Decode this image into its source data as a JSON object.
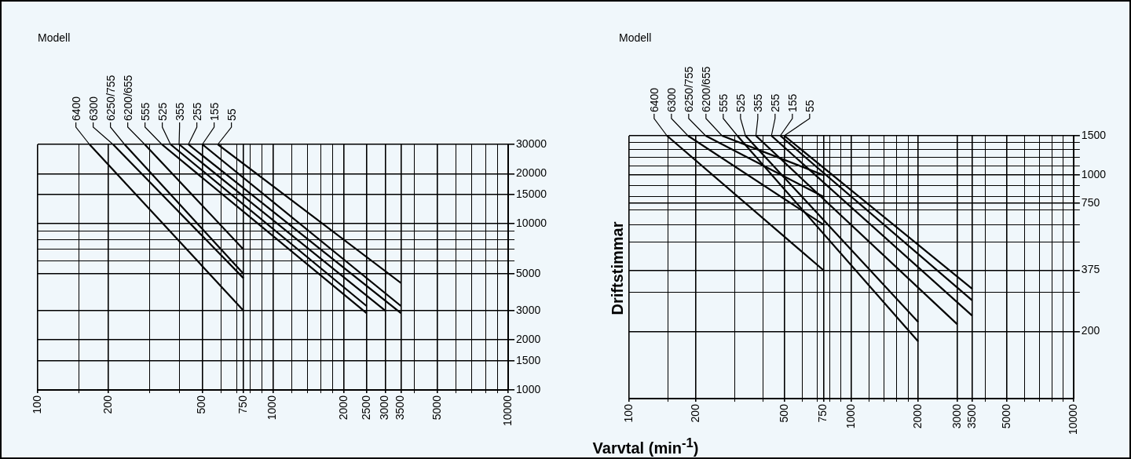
{
  "chart_data": [
    {
      "type": "line",
      "annotations": [
        "Modell"
      ],
      "log": "xy",
      "xlim": [
        100,
        10000
      ],
      "ylim": [
        1000,
        30000
      ],
      "xticks": [
        100,
        {
          "value": 150,
          "label": null
        },
        200,
        {
          "value": 300,
          "label": null
        },
        {
          "value": 400,
          "label": null
        },
        500,
        {
          "value": 600,
          "label": null
        },
        {
          "value": 700,
          "label": null
        },
        750,
        {
          "value": 800,
          "label": null
        },
        {
          "value": 900,
          "label": null
        },
        1000,
        {
          "value": 1200,
          "label": null
        },
        {
          "value": 1400,
          "label": null
        },
        {
          "value": 1600,
          "label": null
        },
        {
          "value": 1800,
          "label": null
        },
        2000,
        2500,
        3000,
        3500,
        {
          "value": 4000,
          "label": null
        },
        5000,
        {
          "value": 6000,
          "label": null
        },
        {
          "value": 7000,
          "label": null
        },
        {
          "value": 8000,
          "label": null
        },
        {
          "value": 9000,
          "label": null
        },
        10000
      ],
      "yticks": [
        1000,
        1500,
        2000,
        3000,
        5000,
        {
          "value": 6000,
          "label": null
        },
        {
          "value": 7000,
          "label": null
        },
        {
          "value": 8000,
          "label": null
        },
        {
          "value": 9000,
          "label": null
        },
        10000,
        15000,
        20000,
        30000
      ],
      "grid": true,
      "legend": false,
      "marker": "none",
      "line_style": "solid",
      "series": [
        {
          "name": "6400",
          "color": "#000000",
          "x": [
            166,
            750
          ],
          "values": [
            30000,
            3000
          ]
        },
        {
          "name": "6300",
          "color": "#000000",
          "x": [
            209,
            750
          ],
          "values": [
            30000,
            4700
          ]
        },
        {
          "name": "6250/755",
          "color": "#000000",
          "x": [
            234,
            750
          ],
          "values": [
            30000,
            5000
          ]
        },
        {
          "name": "6200/655",
          "color": "#000000",
          "x": [
            285,
            750
          ],
          "values": [
            30000,
            7000
          ]
        },
        {
          "name": "555",
          "color": "#000000",
          "x": [
            337,
            2500
          ],
          "values": [
            30000,
            2900
          ]
        },
        {
          "name": "525",
          "color": "#000000",
          "x": [
            367,
            2500
          ],
          "values": [
            30000,
            3200
          ]
        },
        {
          "name": "355",
          "color": "#000000",
          "x": [
            399,
            3000
          ],
          "values": [
            30000,
            3000
          ]
        },
        {
          "name": "255",
          "color": "#000000",
          "x": [
            437,
            3500
          ],
          "values": [
            30000,
            2900
          ]
        },
        {
          "name": "155",
          "color": "#000000",
          "x": [
            501,
            3500
          ],
          "values": [
            30000,
            3200
          ]
        },
        {
          "name": "55",
          "color": "#000000",
          "x": [
            583,
            3500
          ],
          "values": [
            30000,
            4400
          ]
        }
      ]
    },
    {
      "type": "line",
      "annotations": [
        "Modell"
      ],
      "xlabel": "Varvtal (min$^{-1}$)",
      "ylabel": "Driftstimmar",
      "log": "xy",
      "xlim": [
        100,
        10000
      ],
      "ylim": [
        100,
        1500
      ],
      "xticks": [
        100,
        {
          "value": 150,
          "label": null
        },
        200,
        {
          "value": 300,
          "label": null
        },
        {
          "value": 400,
          "label": null
        },
        500,
        {
          "value": 600,
          "label": null
        },
        {
          "value": 700,
          "label": null
        },
        750,
        {
          "value": 800,
          "label": null
        },
        {
          "value": 900,
          "label": null
        },
        1000,
        {
          "value": 1200,
          "label": null
        },
        {
          "value": 1400,
          "label": null
        },
        {
          "value": 1600,
          "label": null
        },
        {
          "value": 1800,
          "label": null
        },
        2000,
        3000,
        3500,
        {
          "value": 4000,
          "label": null
        },
        5000,
        {
          "value": 6000,
          "label": null
        },
        {
          "value": 7000,
          "label": null
        },
        {
          "value": 8000,
          "label": null
        },
        {
          "value": 9000,
          "label": null
        },
        10000
      ],
      "yticks": [
        200,
        {
          "value": 300,
          "label": null
        },
        375,
        {
          "value": 500,
          "label": null
        },
        {
          "value": 600,
          "label": null
        },
        {
          "value": 700,
          "label": null
        },
        750,
        {
          "value": 800,
          "label": null
        },
        {
          "value": 900,
          "label": null
        },
        1000,
        {
          "value": 1100,
          "label": null
        },
        {
          "value": 1200,
          "label": null
        },
        {
          "value": 1300,
          "label": null
        },
        {
          "value": 1400,
          "label": null
        },
        1500
      ],
      "grid": true,
      "legend": false,
      "marker": "none",
      "line_style": "solid",
      "series": [
        {
          "name": "6400",
          "color": "#000000",
          "x": [
            148,
            750
          ],
          "values": [
            1500,
            375
          ]
        },
        {
          "name": "6300",
          "color": "#000000",
          "x": [
            184,
            750
          ],
          "values": [
            1500,
            600
          ]
        },
        {
          "name": "6250/755",
          "color": "#000000",
          "x": [
            221,
            750
          ],
          "values": [
            1500,
            800
          ]
        },
        {
          "name": "6200/655",
          "color": "#000000",
          "x": [
            262,
            750
          ],
          "values": [
            1500,
            1000
          ]
        },
        {
          "name": "555",
          "color": "#000000",
          "x": [
            307,
            2000
          ],
          "values": [
            1500,
            180
          ]
        },
        {
          "name": "525",
          "color": "#000000",
          "x": [
            334,
            2000
          ],
          "values": [
            1500,
            220
          ]
        },
        {
          "name": "355",
          "color": "#000000",
          "x": [
            372,
            3000
          ],
          "values": [
            1500,
            215
          ]
        },
        {
          "name": "255",
          "color": "#000000",
          "x": [
            437,
            3500
          ],
          "values": [
            1500,
            235
          ]
        },
        {
          "name": "155",
          "color": "#000000",
          "x": [
            479,
            3500
          ],
          "values": [
            1500,
            275
          ]
        },
        {
          "name": "55",
          "color": "#000000",
          "x": [
            499,
            3500
          ],
          "values": [
            1500,
            310
          ]
        }
      ]
    }
  ]
}
